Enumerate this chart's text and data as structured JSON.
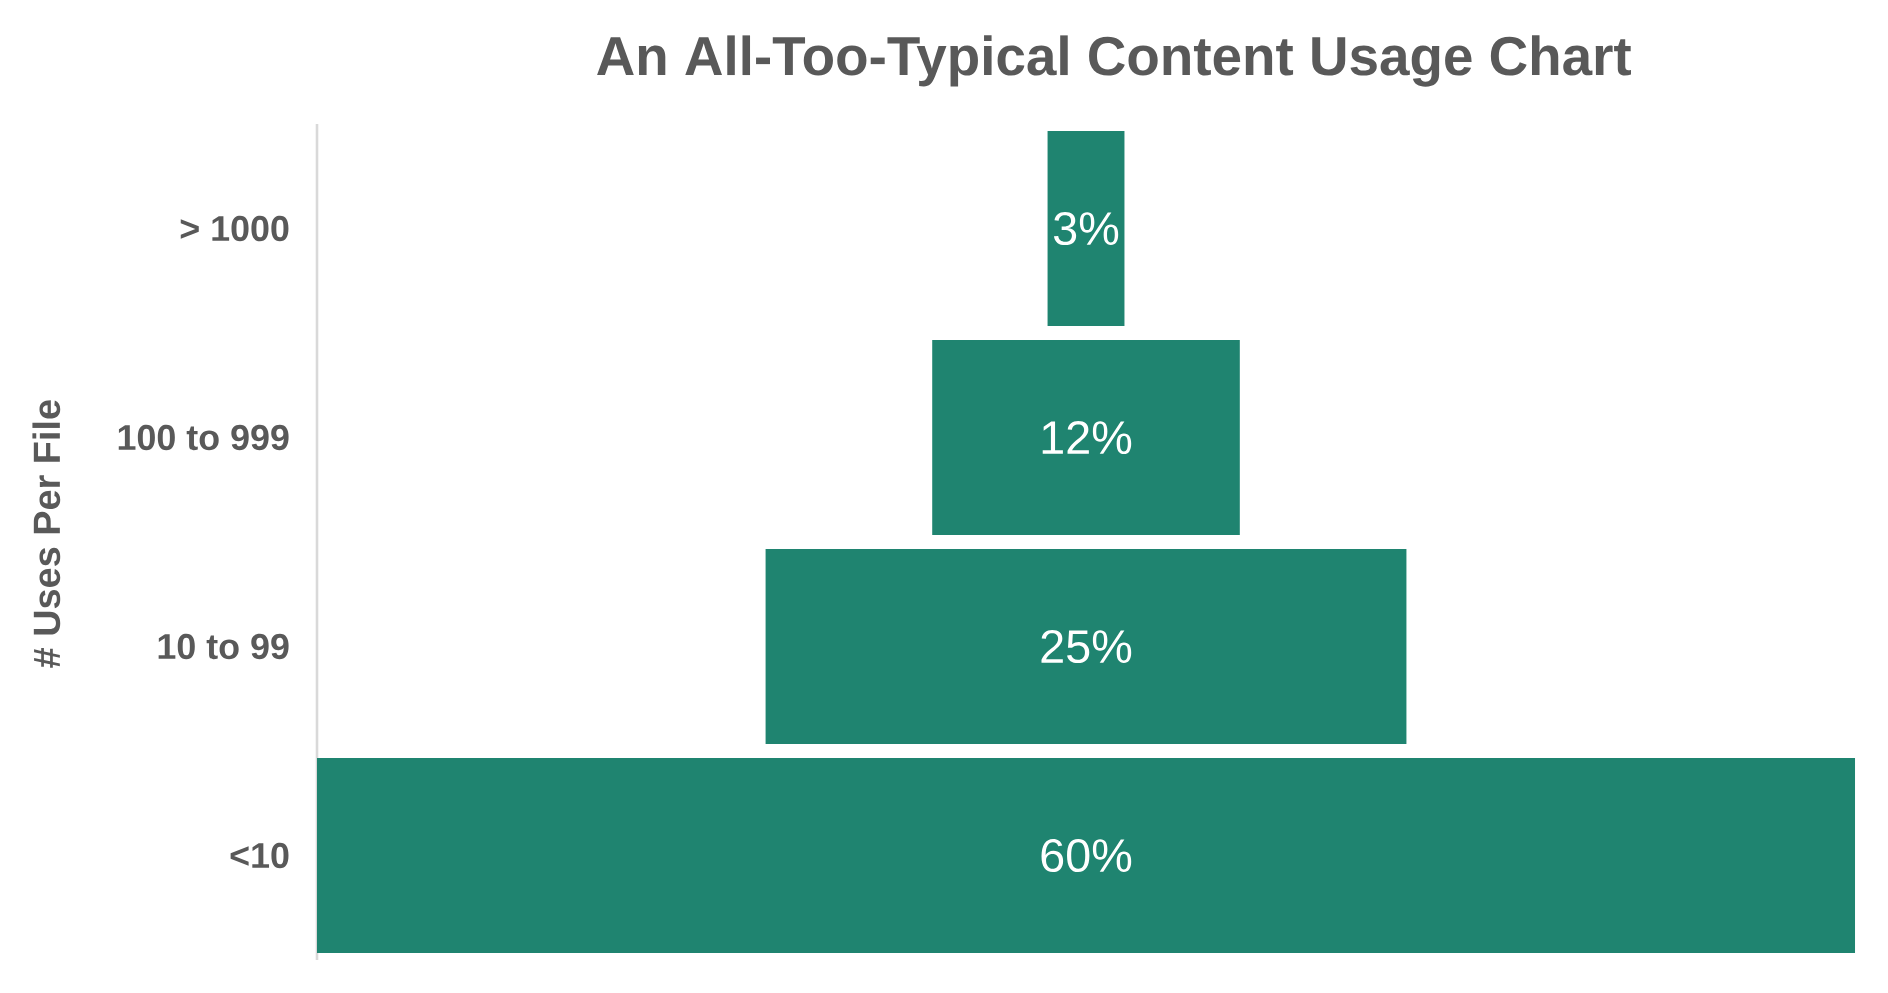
{
  "chart_data": {
    "type": "other",
    "title": "An All-Too-Typical Content Usage Chart",
    "ylabel": "# Uses Per File",
    "categories": [
      "> 1000",
      "100 to 999",
      "10 to 99",
      "<10"
    ],
    "values": [
      3,
      12,
      25,
      60
    ],
    "value_labels": [
      "3%",
      "12%",
      "25%",
      "60%"
    ],
    "color": "#1f8470"
  }
}
